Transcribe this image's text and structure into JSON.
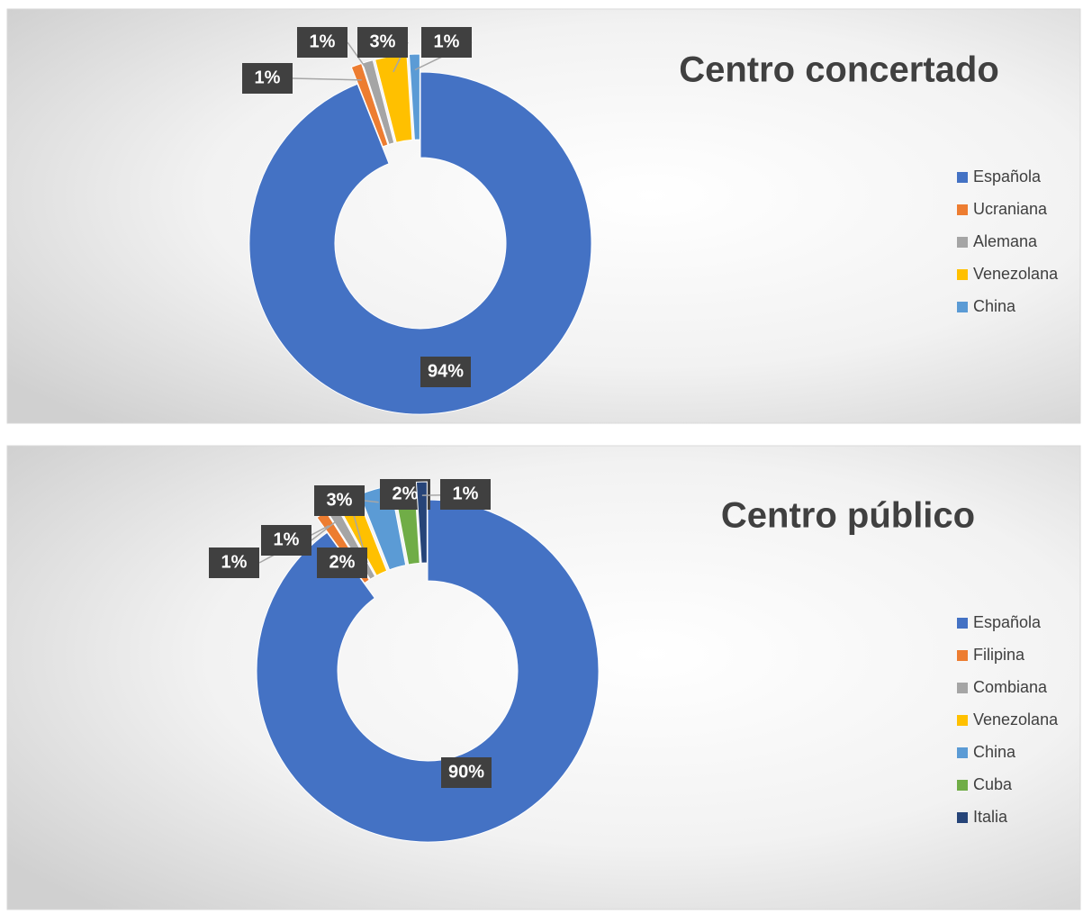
{
  "chart_data": [
    {
      "type": "donut",
      "title": "Centro concertado",
      "categories": [
        "Española",
        "Ucraniana",
        "Alemana",
        "Venezolana",
        "China"
      ],
      "values": [
        94,
        1,
        1,
        3,
        1
      ],
      "value_labels": [
        "94%",
        "1%",
        "1%",
        "3%",
        "1%"
      ],
      "colors": [
        "#4472c4",
        "#ed7d31",
        "#a5a5a5",
        "#ffc000",
        "#5b9bd5"
      ]
    },
    {
      "type": "donut",
      "title": "Centro público",
      "categories": [
        "Española",
        "Filipina",
        "Combiana",
        "Venezolana",
        "China",
        "Cuba",
        "Italia"
      ],
      "values": [
        90,
        1,
        1,
        2,
        3,
        2,
        1
      ],
      "value_labels": [
        "90%",
        "1%",
        "1%",
        "2%",
        "3%",
        "2%",
        "1%"
      ],
      "colors": [
        "#4472c4",
        "#ed7d31",
        "#a5a5a5",
        "#ffc000",
        "#5b9bd5",
        "#70ad47",
        "#264478"
      ]
    }
  ]
}
